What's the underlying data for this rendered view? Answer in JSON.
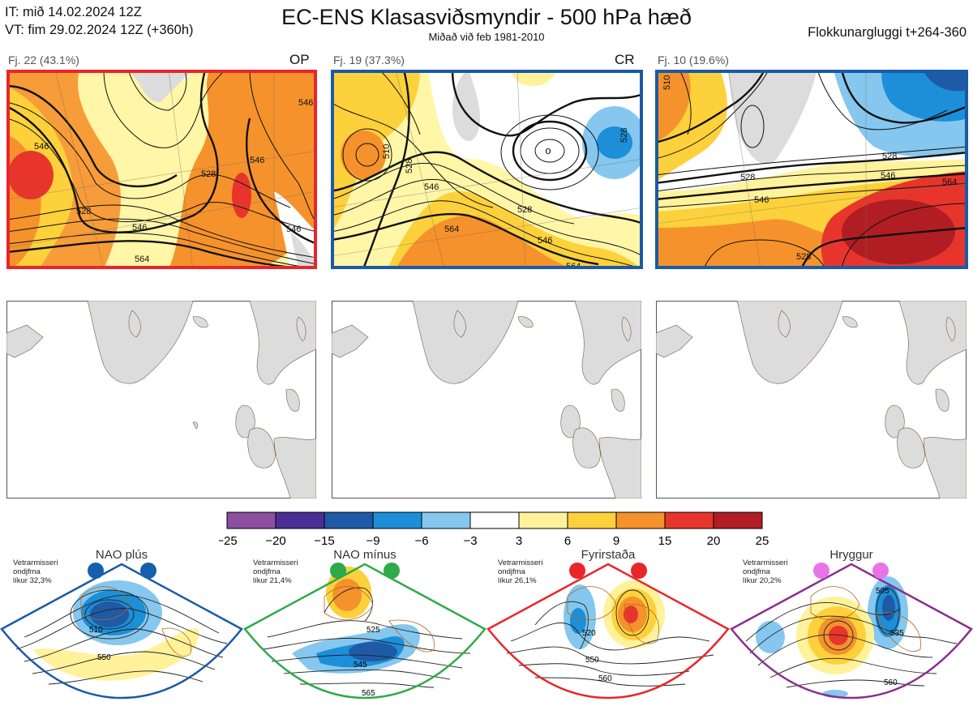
{
  "header": {
    "it_line": "IT: mið 14.02.2024 12Z",
    "vt_line": "VT: fim 29.02.2024 12Z  (+360h)",
    "title": "EC-ENS Klasasviðsmyndir - 500 hPa hæð",
    "subtitle": "Miðað við feb 1981-2010",
    "window": "Flokkunargluggi t+264-360"
  },
  "clusters": [
    {
      "label": "Fj. 22 (43.1%)",
      "tag": "OP",
      "frame_color": "#e8262a",
      "contour_labels": [
        "546",
        "528",
        "546",
        "546",
        "546",
        "528",
        "546",
        "564",
        "528",
        "546"
      ]
    },
    {
      "label": "Fj. 19 (37.3%)",
      "tag": "CR",
      "frame_color": "#1a5aa6",
      "contour_labels": [
        "510",
        "528",
        "546",
        "564",
        "528",
        "546",
        "564",
        "528"
      ]
    },
    {
      "label": "Fj. 10 (19.6%)",
      "tag": "",
      "frame_color": "#1a5aa6",
      "contour_labels": [
        "510",
        "528",
        "546",
        "564",
        "528",
        "546",
        "564"
      ]
    }
  ],
  "colorbar": {
    "ticks": [
      "−25",
      "−20",
      "−15",
      "−9",
      "−6",
      "−3",
      "3",
      "6",
      "9",
      "15",
      "20",
      "25"
    ],
    "colors": [
      "#8b4ea0",
      "#4a2e96",
      "#1f5aa6",
      "#1c8fd8",
      "#85c7ee",
      "#ffffff",
      "#fff29a",
      "#fdd13b",
      "#f5922c",
      "#e8352c",
      "#b01e23"
    ]
  },
  "regimes": [
    {
      "name": "NAO plús",
      "note": [
        "Vetrarmisseri",
        "ondjfma",
        "líkur 32,3%"
      ],
      "color": "#1a5aa6",
      "dot_color": "#1560ad",
      "contour_labels": [
        "510",
        "550"
      ]
    },
    {
      "name": "NAO mínus",
      "note": [
        "Vetrarmisseri",
        "ondjfma",
        "líkur 21,4%"
      ],
      "color": "#2eaa48",
      "dot_color": "#2eaa48",
      "contour_labels": [
        "525",
        "545",
        "565"
      ]
    },
    {
      "name": "Fyrirstaða",
      "note": [
        "Vetrarmisseri",
        "ondjfma",
        "líkur 26,1%"
      ],
      "color": "#e8262a",
      "dot_color": "#e8262a",
      "contour_labels": [
        "520",
        "550",
        "560"
      ]
    },
    {
      "name": "Hryggur",
      "note": [
        "Vetrarmisseri",
        "ondjfma",
        "líkur 20,2%"
      ],
      "color": "#8b2e8f",
      "dot_color": "#e873e8",
      "contour_labels": [
        "505",
        "535",
        "560"
      ]
    }
  ]
}
